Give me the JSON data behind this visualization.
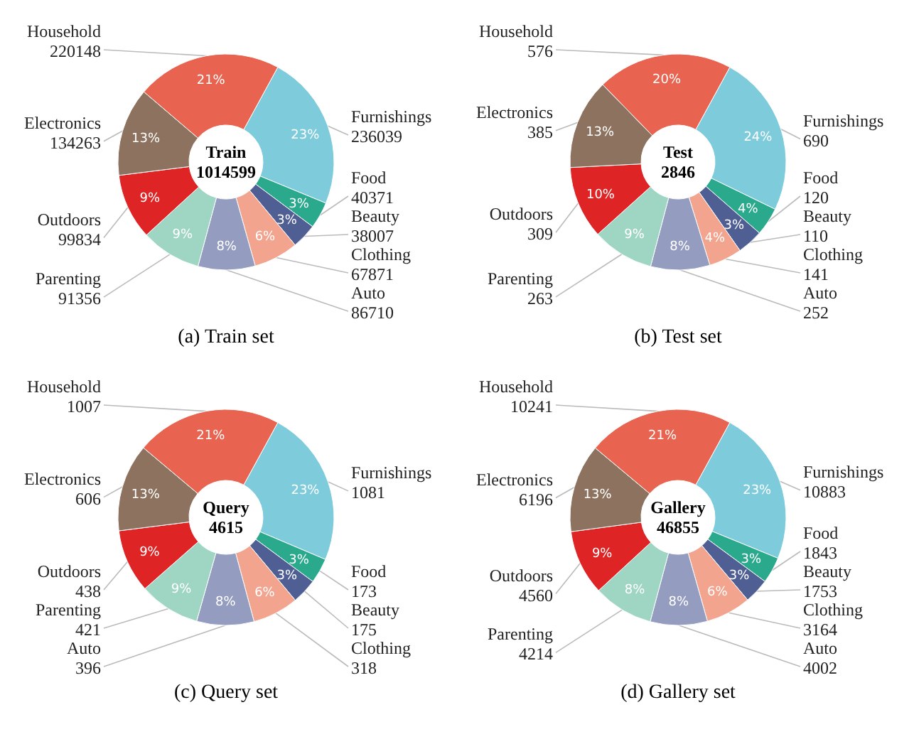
{
  "chart_data": [
    {
      "type": "donut",
      "title": "(a) Train set",
      "annotations": [
        "Train",
        "1014599",
        {
          "text": "23%",
          "x": "Furnishings"
        },
        {
          "text": "3%",
          "x": "Food"
        },
        {
          "text": "3%",
          "x": "Beauty"
        },
        {
          "text": "6%",
          "x": "Clothing"
        },
        {
          "text": "8%",
          "x": "Auto"
        },
        {
          "text": "9%",
          "x": "Parenting"
        },
        {
          "text": "9%",
          "x": "Outdoors"
        },
        {
          "text": "13%",
          "x": "Electronics"
        },
        {
          "text": "21%",
          "x": "Household"
        }
      ],
      "categories": [
        "Furnishings",
        "Food",
        "Beauty",
        "Clothing",
        "Auto",
        "Parenting",
        "Outdoors",
        "Electronics",
        "Household"
      ],
      "values": [
        236039,
        40371,
        38007,
        67871,
        86710,
        91356,
        99834,
        134263,
        220148
      ],
      "data_labels": true,
      "legend": false,
      "colors": [
        "#7ecbdc",
        "#2aa98c",
        "#4f5f93",
        "#f2a48e",
        "#949cc0",
        "#9fd6c3",
        "#df2426",
        "#8d725f",
        "#e86450"
      ]
    },
    {
      "type": "donut",
      "title": "(b) Test set",
      "annotations": [
        "Test",
        "2846",
        {
          "text": "24%",
          "x": "Furnishings"
        },
        {
          "text": "4%",
          "x": "Food"
        },
        {
          "text": "3%",
          "x": "Beauty"
        },
        {
          "text": "4%",
          "x": "Clothing"
        },
        {
          "text": "8%",
          "x": "Auto"
        },
        {
          "text": "9%",
          "x": "Parenting"
        },
        {
          "text": "10%",
          "x": "Outdoors"
        },
        {
          "text": "13%",
          "x": "Electronics"
        },
        {
          "text": "20%",
          "x": "Household"
        }
      ],
      "categories": [
        "Furnishings",
        "Food",
        "Beauty",
        "Clothing",
        "Auto",
        "Parenting",
        "Outdoors",
        "Electronics",
        "Household"
      ],
      "values": [
        690,
        120,
        110,
        141,
        252,
        263,
        309,
        385,
        576
      ],
      "data_labels": true,
      "legend": false,
      "colors": [
        "#7ecbdc",
        "#2aa98c",
        "#4f5f93",
        "#f2a48e",
        "#949cc0",
        "#9fd6c3",
        "#df2426",
        "#8d725f",
        "#e86450"
      ]
    },
    {
      "type": "donut",
      "title": "(c) Query set",
      "annotations": [
        "Query",
        "4615",
        {
          "text": "23%",
          "x": "Furnishings"
        },
        {
          "text": "3%",
          "x": "Food"
        },
        {
          "text": "3%",
          "x": "Beauty"
        },
        {
          "text": "6%",
          "x": "Clothing"
        },
        {
          "text": "8%",
          "x": "Auto"
        },
        {
          "text": "9%",
          "x": "Parenting"
        },
        {
          "text": "9%",
          "x": "Outdoors"
        },
        {
          "text": "13%",
          "x": "Electronics"
        },
        {
          "text": "21%",
          "x": "Household"
        }
      ],
      "categories": [
        "Furnishings",
        "Food",
        "Beauty",
        "Clothing",
        "Auto",
        "Parenting",
        "Outdoors",
        "Electronics",
        "Household"
      ],
      "values": [
        1081,
        173,
        175,
        318,
        396,
        421,
        438,
        606,
        1007
      ],
      "data_labels": true,
      "legend": false,
      "colors": [
        "#7ecbdc",
        "#2aa98c",
        "#4f5f93",
        "#f2a48e",
        "#949cc0",
        "#9fd6c3",
        "#df2426",
        "#8d725f",
        "#e86450"
      ]
    },
    {
      "type": "donut",
      "title": "(d) Gallery set",
      "annotations": [
        "Gallery",
        "46855",
        {
          "text": "23%",
          "x": "Furnishings"
        },
        {
          "text": "3%",
          "x": "Food"
        },
        {
          "text": "3%",
          "x": "Beauty"
        },
        {
          "text": "6%",
          "x": "Clothing"
        },
        {
          "text": "8%",
          "x": "Auto"
        },
        {
          "text": "8%",
          "x": "Parenting"
        },
        {
          "text": "9%",
          "x": "Outdoors"
        },
        {
          "text": "13%",
          "x": "Electronics"
        },
        {
          "text": "21%",
          "x": "Household"
        }
      ],
      "categories": [
        "Furnishings",
        "Food",
        "Beauty",
        "Clothing",
        "Auto",
        "Parenting",
        "Outdoors",
        "Electronics",
        "Household"
      ],
      "values": [
        10883,
        1843,
        1753,
        3164,
        4002,
        4214,
        4560,
        6196,
        10241
      ],
      "data_labels": true,
      "legend": false,
      "colors": [
        "#7ecbdc",
        "#2aa98c",
        "#4f5f93",
        "#f2a48e",
        "#949cc0",
        "#9fd6c3",
        "#df2426",
        "#8d725f",
        "#e86450"
      ]
    }
  ]
}
